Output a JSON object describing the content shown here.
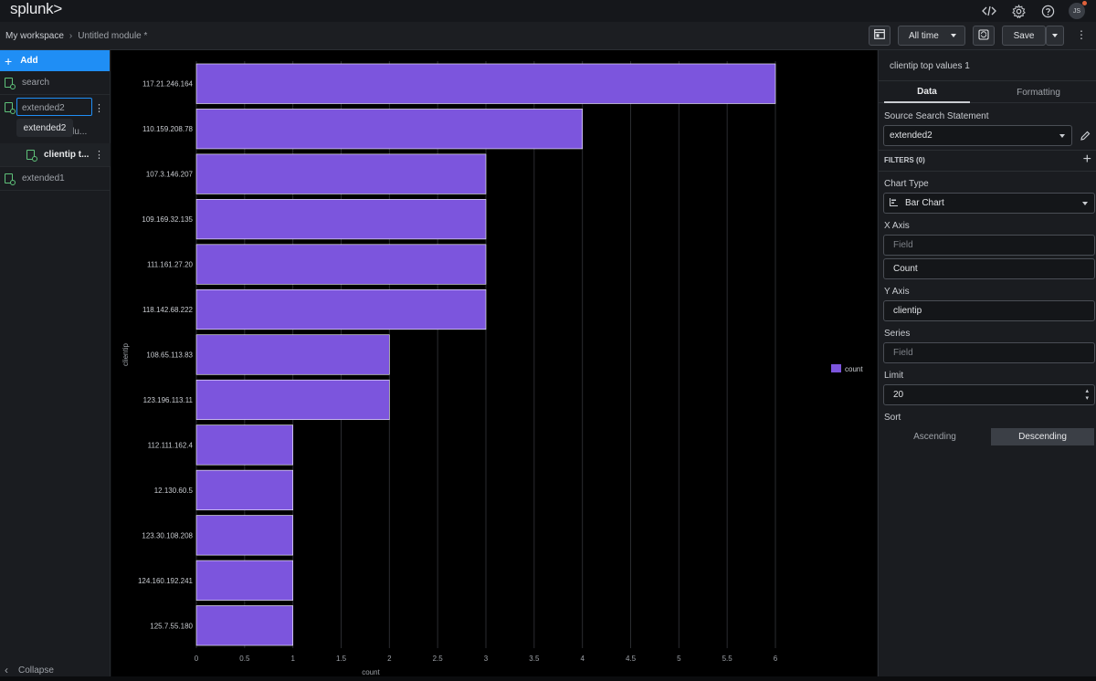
{
  "app": {
    "logo": "splunk>",
    "avatar_initials": "JS"
  },
  "header": {
    "icons": [
      "code-icon",
      "gear-icon",
      "help-icon"
    ]
  },
  "breadcrumb": {
    "workspace": "My workspace",
    "module": "Untitled module *"
  },
  "toolbar": {
    "time_range": "All time",
    "save_label": "Save"
  },
  "sidebar": {
    "add_label": "Add",
    "items": [
      {
        "label": "search"
      },
      {
        "label": "extended2"
      },
      {
        "label": "clientip top valu...",
        "short": "clientip t..."
      },
      {
        "label": "extended1"
      }
    ],
    "tooltip": "extended2",
    "collapse_label": "Collapse"
  },
  "panel": {
    "title": "clientip top values 1",
    "tabs": [
      "Data",
      "Formatting"
    ],
    "source_label": "Source Search Statement",
    "source_value": "extended2",
    "filters_label": "FILTERS (0)",
    "chart_type_label": "Chart Type",
    "chart_type_value": "Bar Chart",
    "x_axis_label": "X Axis",
    "x_axis_placeholder": "Field",
    "x_axis_value": "Count",
    "y_axis_label": "Y Axis",
    "y_axis_value": "clientip",
    "series_label": "Series",
    "series_placeholder": "Field",
    "limit_label": "Limit",
    "limit_value": "20",
    "sort_label": "Sort",
    "sort_options": [
      "Ascending",
      "Descending"
    ],
    "sort_selected": "Descending"
  },
  "chart_data": {
    "type": "bar",
    "orientation": "horizontal",
    "categories": [
      "117.21.246.164",
      "110.159.208.78",
      "107.3.146.207",
      "109.169.32.135",
      "111.161.27.20",
      "118.142.68.222",
      "108.65.113.83",
      "123.196.113.11",
      "112.111.162.4",
      "12.130.60.5",
      "123.30.108.208",
      "124.160.192.241",
      "125.7.55.180"
    ],
    "series": [
      {
        "name": "count",
        "values": [
          6,
          4,
          3,
          3,
          3,
          3,
          2,
          2,
          1,
          1,
          1,
          1,
          1
        ],
        "color": "#7c55dd"
      }
    ],
    "xlabel": "count",
    "ylabel": "clientip",
    "xlim": [
      0,
      6
    ],
    "xticks": [
      "0",
      "0.5",
      "1",
      "1.5",
      "2",
      "2.5",
      "3",
      "3.5",
      "4",
      "4.5",
      "5",
      "5.5",
      "6"
    ],
    "grid": true,
    "legend": "right"
  }
}
